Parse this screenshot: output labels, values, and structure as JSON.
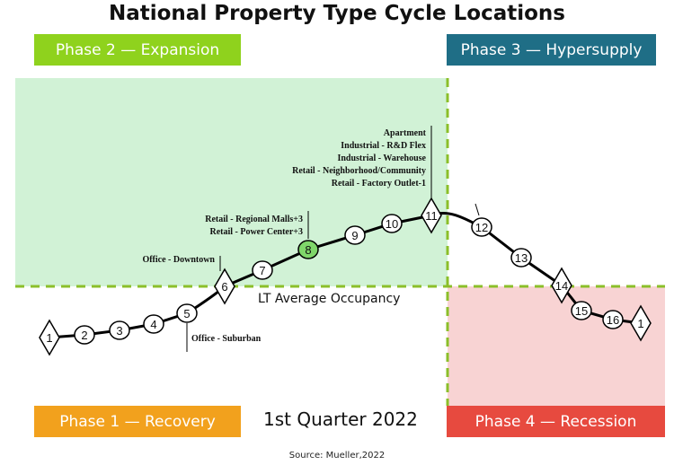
{
  "title": "National Property Type Cycle Locations",
  "phases": {
    "expansion": "Phase 2 — Expansion",
    "hypersupply": "Phase 3 — Hypersupply",
    "recovery": "Phase 1 — Recovery",
    "recession": "Phase 4 — Recession"
  },
  "quarter": "1st Quarter 2022",
  "lt_average_label": "LT Average Occupancy",
  "source": "Source: Mueller,2022",
  "colors": {
    "expansion": "#8fd21d",
    "hypersupply": "#1f6e86",
    "recovery": "#f2a11d",
    "recession": "#e74a3f",
    "highlight_marker": "#7fd66a",
    "dashed_line": "#8bbf2a"
  },
  "points": [
    {
      "label": "1",
      "shape": "diamond"
    },
    {
      "label": "2",
      "shape": "circle"
    },
    {
      "label": "3",
      "shape": "circle"
    },
    {
      "label": "4",
      "shape": "circle"
    },
    {
      "label": "5",
      "shape": "circle"
    },
    {
      "label": "6",
      "shape": "diamond"
    },
    {
      "label": "7",
      "shape": "circle"
    },
    {
      "label": "8",
      "shape": "circle",
      "highlight": true
    },
    {
      "label": "9",
      "shape": "circle"
    },
    {
      "label": "10",
      "shape": "circle"
    },
    {
      "label": "11",
      "shape": "diamond"
    },
    {
      "label": "12",
      "shape": "circle"
    },
    {
      "label": "13",
      "shape": "circle"
    },
    {
      "label": "14",
      "shape": "diamond"
    },
    {
      "label": "15",
      "shape": "circle"
    },
    {
      "label": "16",
      "shape": "circle"
    },
    {
      "label": "1",
      "shape": "diamond"
    }
  ],
  "annotations": {
    "office_suburban": "Office - Suburban",
    "office_downtown": "Office - Downtown",
    "point8": [
      "Retail - Regional Malls+3",
      "Retail - Power Center+3"
    ],
    "point11": [
      "Apartment",
      "Industrial - R&D Flex",
      "Industrial - Warehouse",
      "Retail - Neighborhood/Community",
      "Retail - Factory Outlet-1"
    ]
  }
}
